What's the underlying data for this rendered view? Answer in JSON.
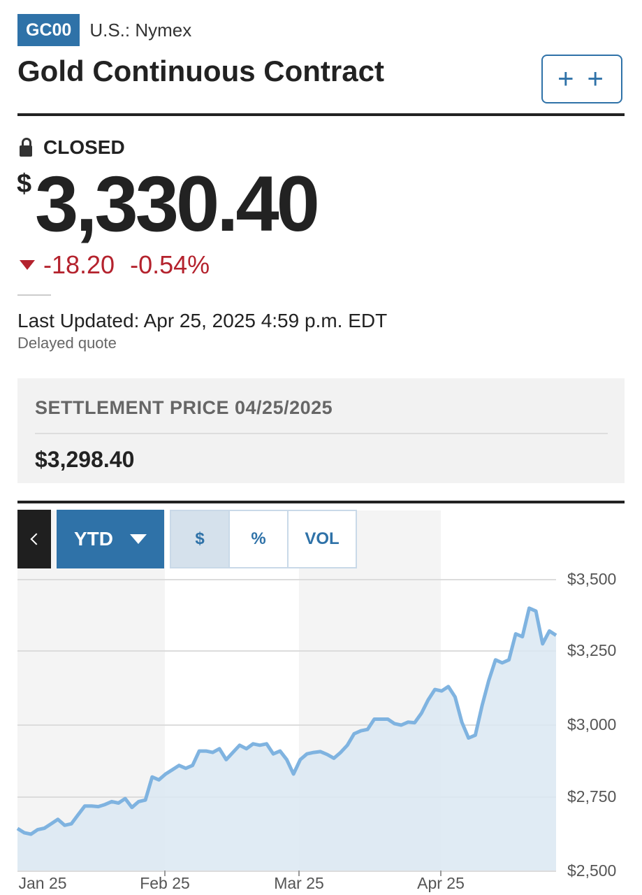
{
  "header": {
    "ticker": "GC00",
    "exchange": "U.S.: Nymex",
    "title": "Gold Continuous Contract",
    "watchlist_label": "+ +"
  },
  "quote": {
    "status": "CLOSED",
    "currency_symbol": "$",
    "price": "3,330.40",
    "change": "-18.20",
    "change_percent": "-0.54%",
    "last_updated": "Last Updated: Apr 25, 2025 4:59 p.m. EDT",
    "delayed_label": "Delayed quote"
  },
  "settlement": {
    "label": "SETTLEMENT PRICE 04/25/2025",
    "value": "$3,298.40"
  },
  "chart_controls": {
    "range": "YTD",
    "modes": [
      "$",
      "%",
      "VOL"
    ],
    "active_mode": "$"
  },
  "colors": {
    "accent": "#2f72a8",
    "down": "#b4222d",
    "line": "#7fb3e0",
    "fill": "#dbe7f2"
  },
  "chart_data": {
    "type": "area",
    "y_tick_labels": [
      "$3,500",
      "$3,250",
      "$3,000",
      "$2,750",
      "$2,500"
    ],
    "y_ticks": [
      3500,
      3250,
      3000,
      2750,
      2500
    ],
    "x_tick_labels": [
      "Jan 25",
      "Feb 25",
      "Mar 25",
      "Apr 25"
    ],
    "ylim": [
      2500,
      3500
    ],
    "grid": true,
    "series": [
      {
        "values": [
          2644,
          2630,
          2625,
          2640,
          2645,
          2660,
          2675,
          2655,
          2660,
          2690,
          2720,
          2720,
          2718,
          2725,
          2735,
          2730,
          2745,
          2715,
          2735,
          2740,
          2820,
          2810,
          2830,
          2845,
          2860,
          2850,
          2860,
          2910,
          2910,
          2905,
          2918,
          2880,
          2905,
          2930,
          2918,
          2935,
          2930,
          2935,
          2900,
          2910,
          2880,
          2830,
          2880,
          2900,
          2905,
          2908,
          2898,
          2885,
          2905,
          2930,
          2970,
          2980,
          2985,
          3020,
          3020,
          3020,
          3005,
          3000,
          3010,
          3008,
          3040,
          3085,
          3120,
          3115,
          3130,
          3095,
          3010,
          2955,
          2965,
          3065,
          3150,
          3220,
          3210,
          3220,
          3310,
          3300,
          3400,
          3390,
          3275,
          3320,
          3305
        ]
      }
    ]
  }
}
